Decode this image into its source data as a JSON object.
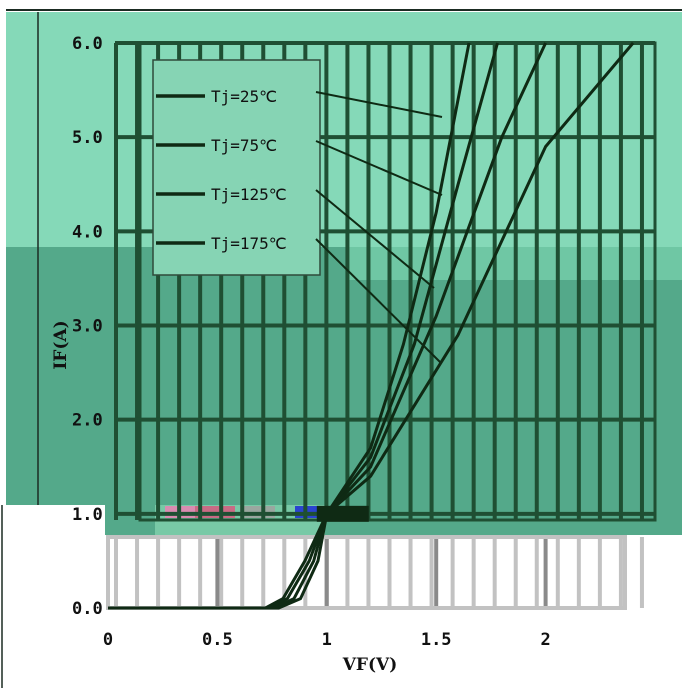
{
  "chart_data": {
    "type": "line",
    "title": "",
    "xlabel": "VF(V)",
    "ylabel": "IF(A)",
    "xlim": [
      0,
      2.5
    ],
    "ylim": [
      0,
      6
    ],
    "x_ticks": [
      {
        "value": 0,
        "label": "0"
      },
      {
        "value": 0.5,
        "label": "0.5"
      },
      {
        "value": 1,
        "label": "1"
      },
      {
        "value": 1.5,
        "label": "1.5"
      },
      {
        "value": 2,
        "label": "2"
      }
    ],
    "y_ticks": [
      {
        "value": 0,
        "label": "0.0"
      },
      {
        "value": 1,
        "label": "1.0"
      },
      {
        "value": 2,
        "label": "2.0"
      },
      {
        "value": 3,
        "label": "3.0"
      },
      {
        "value": 4,
        "label": "4.0"
      },
      {
        "value": 5,
        "label": "5.0"
      },
      {
        "value": 6,
        "label": "6.0"
      }
    ],
    "grid": true,
    "legend_position": "top-left",
    "series": [
      {
        "name": "Tj=25℃",
        "color": "#0f2a14",
        "points": [
          [
            0,
            0
          ],
          [
            0.72,
            0
          ],
          [
            0.8,
            0.1
          ],
          [
            0.9,
            0.5
          ],
          [
            1.0,
            1.0
          ],
          [
            1.2,
            1.7
          ],
          [
            1.35,
            2.8
          ],
          [
            1.5,
            4.2
          ],
          [
            1.65,
            6.0
          ]
        ]
      },
      {
        "name": "Tj=75℃",
        "color": "#0f2a14",
        "points": [
          [
            0,
            0
          ],
          [
            0.74,
            0
          ],
          [
            0.82,
            0.1
          ],
          [
            0.92,
            0.5
          ],
          [
            1.0,
            1.0
          ],
          [
            1.2,
            1.6
          ],
          [
            1.4,
            2.8
          ],
          [
            1.6,
            4.5
          ],
          [
            1.78,
            6.0
          ]
        ]
      },
      {
        "name": "Tj=125℃",
        "color": "#0f2a14",
        "points": [
          [
            0,
            0
          ],
          [
            0.76,
            0
          ],
          [
            0.85,
            0.1
          ],
          [
            0.94,
            0.5
          ],
          [
            1.0,
            1.0
          ],
          [
            1.2,
            1.5
          ],
          [
            1.5,
            3.1
          ],
          [
            1.8,
            5.0
          ],
          [
            2.0,
            6.0
          ]
        ]
      },
      {
        "name": "Tj=175℃",
        "color": "#0f2a14",
        "points": [
          [
            0,
            0
          ],
          [
            0.78,
            0
          ],
          [
            0.88,
            0.1
          ],
          [
            0.96,
            0.5
          ],
          [
            1.0,
            1.0
          ],
          [
            1.2,
            1.4
          ],
          [
            1.6,
            2.9
          ],
          [
            2.0,
            4.9
          ],
          [
            2.4,
            6.0
          ]
        ]
      }
    ],
    "colors": {
      "teal_light": "#85d9b8",
      "teal_mid": "#6fc7a4",
      "teal_dark": "#54a98a",
      "grid_dark": "#1f4f33",
      "grid_light_gray": "#c2c2c2",
      "grid_mid_gray": "#8a8a8a",
      "legend_bg": "#86d4b4",
      "legend_border": "#2f4a3a"
    }
  }
}
